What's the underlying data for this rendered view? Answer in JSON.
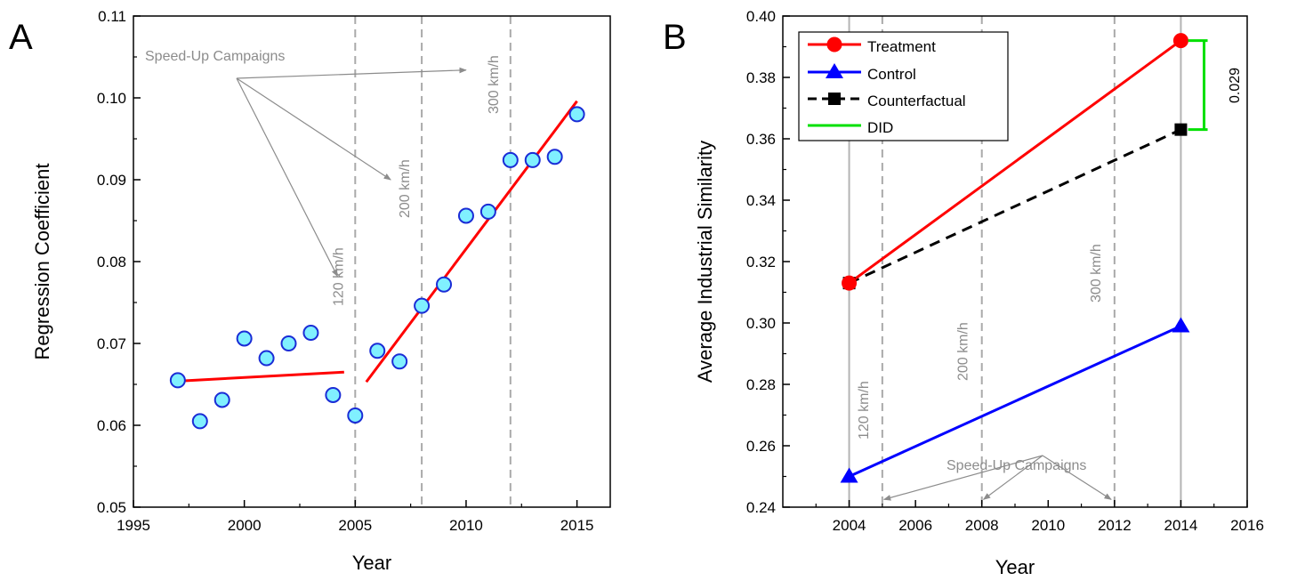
{
  "chart_data": [
    {
      "type": "scatter",
      "panel_letter": "A",
      "xlabel": "Year",
      "ylabel": "Regression Coefficient",
      "xlim": [
        1995,
        2016.5
      ],
      "ylim": [
        0.05,
        0.11
      ],
      "xticks": [
        1995,
        2000,
        2005,
        2010,
        2015
      ],
      "yticks": [
        0.05,
        0.06,
        0.07,
        0.08,
        0.09,
        0.1,
        0.11
      ],
      "ytick_labels": [
        "0.05",
        "0.06",
        "0.07",
        "0.08",
        "0.09",
        "0.10",
        "0.11"
      ],
      "grid": false,
      "colors": {
        "marker_fill": "#80f0ff",
        "marker_edge": "#1a2cd6",
        "fit_line": "#ff0000",
        "event_line": "#aaaaaa",
        "annotation": "#8c8c8c"
      },
      "points": {
        "x": [
          1997,
          1998,
          1999,
          2000,
          2001,
          2002,
          2003,
          2004,
          2005,
          2006,
          2007,
          2008,
          2009,
          2010,
          2011,
          2012,
          2013,
          2014,
          2015
        ],
        "y": [
          0.0655,
          0.0605,
          0.0631,
          0.0706,
          0.0682,
          0.07,
          0.0713,
          0.0637,
          0.0612,
          0.0691,
          0.0678,
          0.0746,
          0.0772,
          0.0856,
          0.0861,
          0.0924,
          0.0924,
          0.0928,
          0.098
        ]
      },
      "fit_lines": [
        {
          "x": [
            1997,
            2004.5
          ],
          "y": [
            0.0654,
            0.0665
          ]
        },
        {
          "x": [
            2005.5,
            2015
          ],
          "y": [
            0.0653,
            0.0996
          ]
        }
      ],
      "event_lines": [
        {
          "x": 2005,
          "label": "120 km/h"
        },
        {
          "x": 2008,
          "label": "200 km/h"
        },
        {
          "x": 2012,
          "label": "300 km/h"
        }
      ],
      "annotation": {
        "text": "Speed-Up Campaigns"
      }
    },
    {
      "type": "line",
      "panel_letter": "B",
      "xlabel": "Year",
      "ylabel": "Average Industrial Similarity",
      "xlim": [
        2002,
        2016
      ],
      "ylim": [
        0.24,
        0.4
      ],
      "xticks": [
        2004,
        2006,
        2008,
        2010,
        2012,
        2014,
        2016
      ],
      "yticks": [
        0.24,
        0.26,
        0.28,
        0.3,
        0.32,
        0.34,
        0.36,
        0.38,
        0.4
      ],
      "ytick_labels": [
        "0.24",
        "0.26",
        "0.28",
        "0.30",
        "0.32",
        "0.34",
        "0.36",
        "0.38",
        "0.40"
      ],
      "grid": false,
      "legend_position": "top-left",
      "series": [
        {
          "name": "Treatment",
          "x": [
            2004,
            2014
          ],
          "y": [
            0.313,
            0.392
          ],
          "color": "#ff0000",
          "marker": "circle",
          "dash": "solid"
        },
        {
          "name": "Control",
          "x": [
            2004,
            2014
          ],
          "y": [
            0.25,
            0.299
          ],
          "color": "#0000ff",
          "marker": "triangle",
          "dash": "solid"
        },
        {
          "name": "Counterfactual",
          "x": [
            2004,
            2014
          ],
          "y": [
            0.313,
            0.363
          ],
          "color": "#000000",
          "marker": "square",
          "dash": "dashed"
        },
        {
          "name": "DID",
          "color": "#00e000",
          "marker": "none",
          "dash": "solid"
        }
      ],
      "did": {
        "x": 2014.7,
        "y_low": 0.363,
        "y_high": 0.392,
        "label": "0.029"
      },
      "period_lines": [
        2004,
        2014
      ],
      "event_lines": [
        {
          "x": 2005,
          "label": "120 km/h"
        },
        {
          "x": 2008,
          "label": "200 km/h"
        },
        {
          "x": 2012,
          "label": "300 km/h"
        }
      ],
      "annotation": {
        "text": "Speed-Up Campaigns"
      },
      "colors": {
        "event_line": "#aaaaaa",
        "period_line": "#b4b4b4",
        "annotation": "#8c8c8c"
      }
    }
  ]
}
